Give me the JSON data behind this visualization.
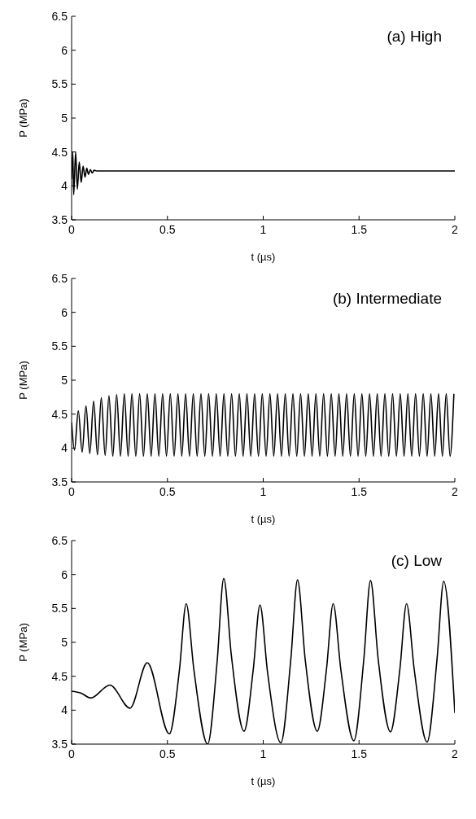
{
  "chart_data": [
    {
      "type": "line",
      "title": "(a) High",
      "xlabel": "t (µs)",
      "ylabel": "P (MPa)",
      "color": "#000000",
      "xlim": [
        0,
        2
      ],
      "ylim": [
        3.5,
        6.5
      ],
      "xticks": [
        0,
        0.5,
        1,
        1.5,
        2
      ],
      "yticks": [
        3.5,
        4,
        4.5,
        5,
        5.5,
        6,
        6.5
      ],
      "x": [
        0,
        0.006,
        0.011,
        0.021,
        0.03,
        0.04,
        0.05,
        0.06,
        0.07,
        0.079,
        0.088,
        0.098,
        0.108,
        0.117,
        0.13,
        2
      ],
      "values": [
        4.1,
        4.5,
        3.87,
        4.5,
        3.95,
        4.35,
        4.05,
        4.29,
        4.13,
        4.26,
        4.17,
        4.24,
        4.19,
        4.23,
        4.22,
        4.22
      ]
    },
    {
      "type": "line",
      "title": "(b) Intermediate",
      "xlabel": "t (µs)",
      "ylabel": "P (MPa)",
      "color": "#000000",
      "xlim": [
        0,
        2
      ],
      "ylim": [
        3.5,
        6.5
      ],
      "xticks": [
        0,
        0.5,
        1,
        1.5,
        2
      ],
      "yticks": [
        3.5,
        4,
        4.5,
        5,
        5.5,
        6,
        6.5
      ],
      "x": [
        0,
        0.015,
        0.035,
        0.055,
        0.075,
        0.095,
        0.115,
        0.135,
        0.155,
        0.175,
        0.195,
        0.215,
        0.235,
        0.255,
        0.275,
        0.295,
        0.315,
        0.335,
        0.355,
        0.375,
        0.395,
        0.415,
        0.435,
        0.455,
        0.475,
        0.495,
        0.515,
        0.535,
        0.555,
        0.575,
        0.595,
        0.615,
        0.635,
        0.655,
        0.675,
        0.695,
        0.715,
        0.735,
        0.755,
        0.775,
        0.795,
        0.815,
        0.835,
        0.855,
        0.875,
        0.895,
        0.915,
        0.935,
        0.955,
        0.975,
        0.995,
        1.015,
        1.035,
        1.055,
        1.075,
        1.095,
        1.115,
        1.135,
        1.155,
        1.175,
        1.195,
        1.215,
        1.235,
        1.255,
        1.275,
        1.295,
        1.315,
        1.335,
        1.355,
        1.375,
        1.395,
        1.415,
        1.435,
        1.455,
        1.475,
        1.495,
        1.515,
        1.535,
        1.555,
        1.575,
        1.595,
        1.615,
        1.635,
        1.655,
        1.675,
        1.695,
        1.715,
        1.735,
        1.755,
        1.775,
        1.795,
        1.815,
        1.835,
        1.855,
        1.875,
        1.895,
        1.915,
        1.935,
        1.955,
        1.975,
        1.995
      ],
      "values": [
        4.38,
        3.97,
        4.55,
        3.94,
        4.62,
        3.92,
        4.69,
        3.9,
        4.74,
        3.89,
        4.77,
        3.88,
        4.79,
        3.88,
        4.8,
        3.88,
        4.8,
        3.88,
        4.8,
        3.88,
        4.8,
        3.88,
        4.8,
        3.88,
        4.8,
        3.88,
        4.8,
        3.88,
        4.8,
        3.88,
        4.8,
        3.88,
        4.8,
        3.88,
        4.8,
        3.88,
        4.8,
        3.88,
        4.8,
        3.88,
        4.8,
        3.88,
        4.8,
        3.88,
        4.8,
        3.88,
        4.8,
        3.88,
        4.8,
        3.88,
        4.8,
        3.88,
        4.8,
        3.88,
        4.8,
        3.88,
        4.8,
        3.88,
        4.8,
        3.88,
        4.8,
        3.88,
        4.8,
        3.88,
        4.8,
        3.88,
        4.8,
        3.88,
        4.8,
        3.88,
        4.8,
        3.88,
        4.8,
        3.88,
        4.8,
        3.88,
        4.8,
        3.88,
        4.8,
        3.88,
        4.8,
        3.88,
        4.8,
        3.88,
        4.8,
        3.88,
        4.8,
        3.88,
        4.8,
        3.88,
        4.8,
        3.88,
        4.8,
        3.88,
        4.8,
        3.88,
        4.8,
        3.88,
        4.8,
        3.88,
        4.8
      ]
    },
    {
      "type": "line",
      "title": "(c) Low",
      "xlabel": "t (µs)",
      "ylabel": "P (MPa)",
      "color": "#000000",
      "xlim": [
        0,
        2
      ],
      "ylim": [
        3.5,
        6.5
      ],
      "xticks": [
        0,
        0.5,
        1,
        1.5,
        2
      ],
      "yticks": [
        3.5,
        4,
        4.5,
        5,
        5.5,
        6,
        6.5
      ],
      "x": [
        0,
        0.05,
        0.1,
        0.2,
        0.305,
        0.395,
        0.51,
        0.563,
        0.598,
        0.638,
        0.71,
        0.759,
        0.794,
        0.834,
        0.9,
        0.948,
        0.983,
        1.023,
        1.092,
        1.144,
        1.179,
        1.219,
        1.282,
        1.33,
        1.365,
        1.405,
        1.473,
        1.525,
        1.56,
        1.6,
        1.664,
        1.713,
        1.748,
        1.788,
        1.855,
        1.907,
        1.942,
        2
      ],
      "values": [
        4.28,
        4.25,
        4.18,
        4.37,
        4.03,
        4.7,
        3.65,
        4.6,
        5.57,
        4.6,
        3.5,
        4.7,
        5.94,
        4.8,
        3.69,
        4.6,
        5.55,
        4.55,
        3.52,
        4.75,
        5.92,
        4.75,
        3.69,
        4.6,
        5.57,
        4.6,
        3.55,
        4.75,
        5.91,
        4.75,
        3.68,
        4.6,
        5.57,
        4.6,
        3.53,
        4.75,
        5.9,
        3.96
      ]
    }
  ]
}
